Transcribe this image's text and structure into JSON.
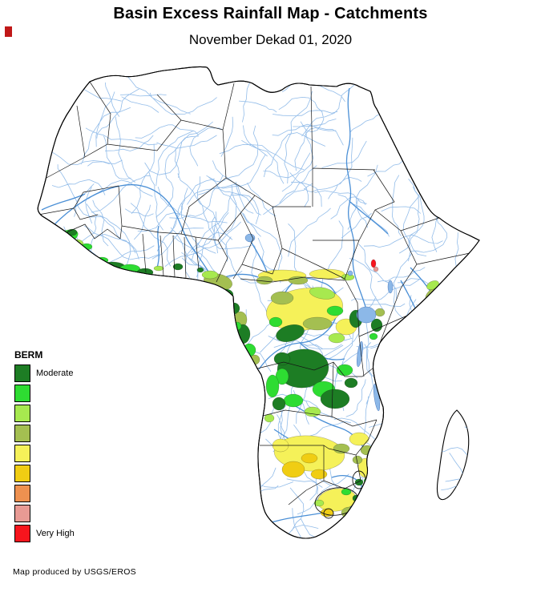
{
  "header": {
    "title": "Basin Excess Rainfall Map - Catchments",
    "subtitle": "November Dekad 01, 2020"
  },
  "legend": {
    "title": "BERM",
    "entries": [
      {
        "color": "#1d7d24",
        "label": "Moderate"
      },
      {
        "color": "#2edc32",
        "label": ""
      },
      {
        "color": "#a7e94f",
        "label": ""
      },
      {
        "color": "#a4bf51",
        "label": ""
      },
      {
        "color": "#f5f159",
        "label": ""
      },
      {
        "color": "#f0cd13",
        "label": ""
      },
      {
        "color": "#ee9150",
        "label": ""
      },
      {
        "color": "#e89a94",
        "label": ""
      },
      {
        "color": "#f7151d",
        "label": "Very High"
      }
    ]
  },
  "map": {
    "region": "Africa",
    "colors": {
      "water": "#8cb8e8",
      "land": "#ffffff",
      "boundary": "#000000"
    }
  },
  "footer": {
    "credit": "Map produced by USGS/EROS"
  }
}
